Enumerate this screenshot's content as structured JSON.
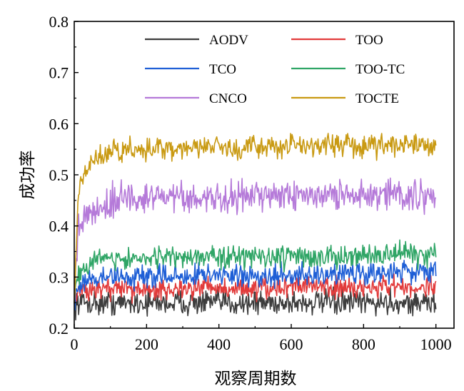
{
  "chart_data": {
    "type": "line",
    "xlabel": "观察周期数",
    "ylabel": "成功率",
    "xlim": [
      0,
      1050
    ],
    "ylim": [
      0.2,
      0.8
    ],
    "x_ticks": [
      0,
      200,
      400,
      600,
      800,
      1000
    ],
    "y_ticks": [
      0.2,
      0.3,
      0.4,
      0.5,
      0.6,
      0.7,
      0.8
    ],
    "x_tick_labels": [
      "0",
      "200",
      "400",
      "600",
      "800",
      "1000"
    ],
    "y_tick_labels": [
      "0.2",
      "0.3",
      "0.4",
      "0.5",
      "0.6",
      "0.7",
      "0.8"
    ],
    "grid": false,
    "legend_position": "top",
    "series": [
      {
        "name": "AODV",
        "color": "#3d3d3d",
        "x": [
          0,
          10,
          50,
          100,
          200,
          300,
          400,
          500,
          600,
          700,
          800,
          900,
          1000
        ],
        "values": [
          0.25,
          0.25,
          0.25,
          0.25,
          0.25,
          0.25,
          0.25,
          0.25,
          0.25,
          0.25,
          0.25,
          0.25,
          0.25
        ],
        "noise": 0.012
      },
      {
        "name": "TOO",
        "color": "#e23b3b",
        "x": [
          0,
          10,
          50,
          100,
          200,
          300,
          400,
          500,
          600,
          700,
          800,
          900,
          1000
        ],
        "values": [
          0.25,
          0.27,
          0.275,
          0.275,
          0.276,
          0.277,
          0.278,
          0.278,
          0.279,
          0.28,
          0.28,
          0.28,
          0.28
        ],
        "noise": 0.011
      },
      {
        "name": "TCO",
        "color": "#1f5fd6",
        "x": [
          0,
          10,
          50,
          100,
          200,
          300,
          400,
          500,
          600,
          700,
          800,
          900,
          1000
        ],
        "values": [
          0.25,
          0.28,
          0.295,
          0.3,
          0.302,
          0.303,
          0.304,
          0.305,
          0.305,
          0.306,
          0.307,
          0.308,
          0.31
        ],
        "noise": 0.011
      },
      {
        "name": "TOO-TC",
        "color": "#2fa566",
        "x": [
          0,
          10,
          50,
          100,
          200,
          300,
          400,
          500,
          600,
          700,
          800,
          900,
          1000
        ],
        "values": [
          0.25,
          0.31,
          0.33,
          0.335,
          0.338,
          0.338,
          0.339,
          0.34,
          0.34,
          0.341,
          0.342,
          0.343,
          0.345
        ],
        "noise": 0.011
      },
      {
        "name": "CNCO",
        "color": "#b57ad9",
        "x": [
          0,
          10,
          20,
          50,
          100,
          200,
          300,
          400,
          500,
          600,
          700,
          800,
          900,
          1000
        ],
        "values": [
          0.25,
          0.39,
          0.41,
          0.43,
          0.45,
          0.455,
          0.457,
          0.458,
          0.458,
          0.459,
          0.46,
          0.46,
          0.46,
          0.46
        ],
        "noise": 0.015
      },
      {
        "name": "TOCTE",
        "color": "#c99a13",
        "x": [
          0,
          10,
          20,
          50,
          100,
          200,
          300,
          400,
          500,
          600,
          700,
          800,
          900,
          1000
        ],
        "values": [
          0.25,
          0.44,
          0.49,
          0.53,
          0.545,
          0.55,
          0.552,
          0.553,
          0.555,
          0.556,
          0.557,
          0.558,
          0.559,
          0.56
        ],
        "noise": 0.011
      }
    ]
  }
}
